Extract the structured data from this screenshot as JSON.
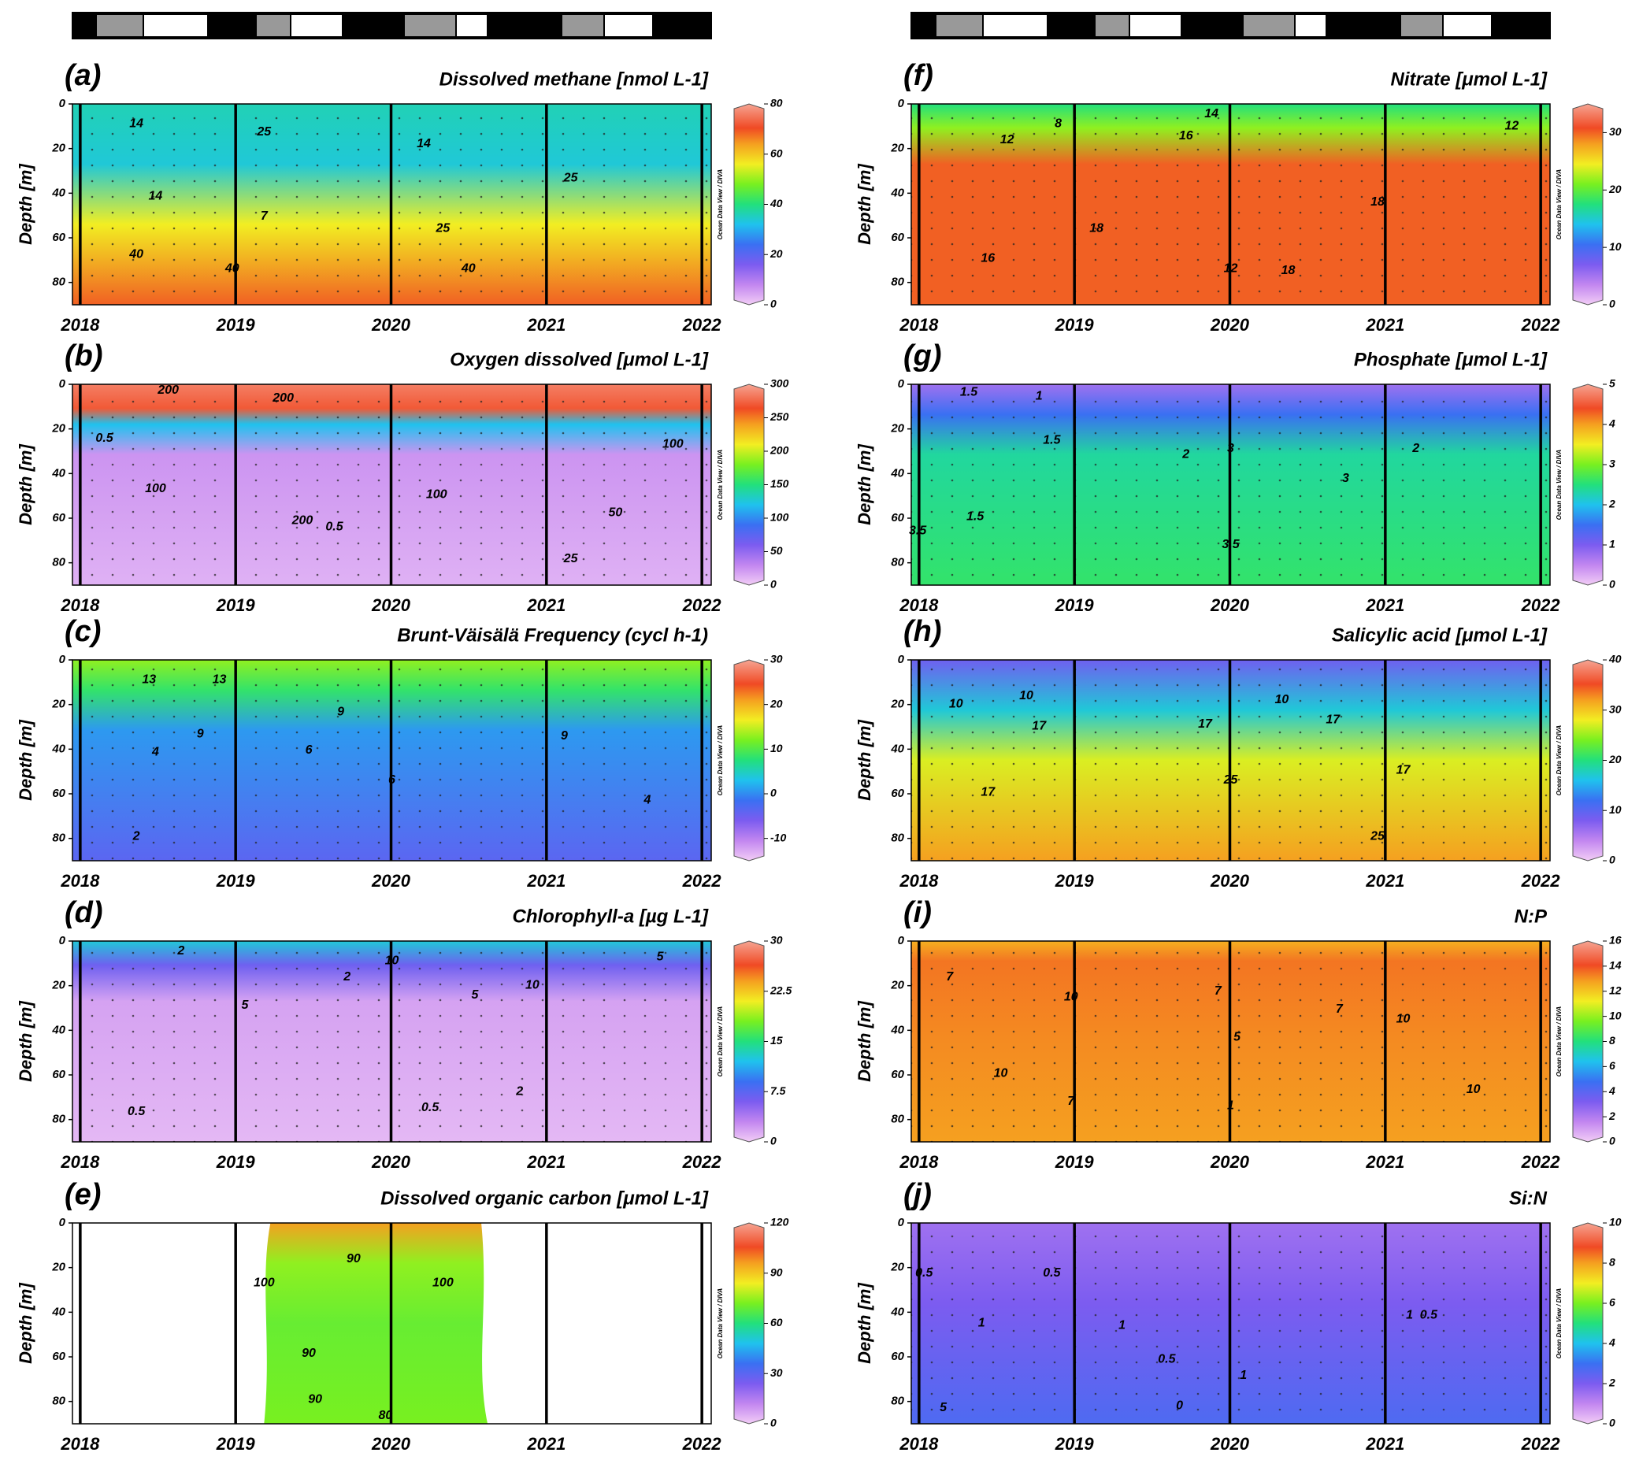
{
  "chart_data": [
    {
      "type": "contour",
      "panel_label": "(a)",
      "title": "Dissolved methane [nmol L-1]",
      "ylabel": "Depth [m]",
      "xlim": [
        2017.95,
        2022.06
      ],
      "xticks": [
        2018,
        2019,
        2020,
        2021,
        2022
      ],
      "ylim": [
        90,
        0
      ],
      "yticks": [
        0,
        20,
        40,
        60,
        80
      ],
      "colorbar": {
        "lim": [
          0,
          80
        ],
        "ticks": [
          0,
          20,
          40,
          60,
          80
        ]
      },
      "watermark": "Ocean Data View / DIVA",
      "contour_labels": [
        "14",
        "25",
        "14",
        "14",
        "7",
        "25",
        "40",
        "40",
        "40",
        "25"
      ]
    },
    {
      "type": "contour",
      "panel_label": "(b)",
      "title": "Oxygen dissolved [μmol L-1]",
      "ylabel": "Depth [m]",
      "xlim": [
        2017.95,
        2022.06
      ],
      "xticks": [
        2018,
        2019,
        2020,
        2021,
        2022
      ],
      "ylim": [
        90,
        0
      ],
      "yticks": [
        0,
        20,
        40,
        60,
        80
      ],
      "colorbar": {
        "lim": [
          0,
          300
        ],
        "ticks": [
          0,
          50,
          100,
          150,
          200,
          250,
          300
        ]
      },
      "watermark": "Ocean Data View / DIVA",
      "contour_labels": [
        "200",
        "200",
        "0.5",
        "100",
        "200",
        "0.5",
        "100",
        "25",
        "50",
        "100"
      ]
    },
    {
      "type": "contour",
      "panel_label": "(c)",
      "title": "Brunt-Väisälä Frequency (cycl h-1)",
      "ylabel": "Depth [m]",
      "xlim": [
        2017.95,
        2022.06
      ],
      "xticks": [
        2018,
        2019,
        2020,
        2021,
        2022
      ],
      "ylim": [
        90,
        0
      ],
      "yticks": [
        0,
        20,
        40,
        60,
        80
      ],
      "colorbar": {
        "lim": [
          -15,
          30
        ],
        "ticks": [
          -10,
          0,
          10,
          20,
          30
        ]
      },
      "watermark": "Ocean Data View / DIVA",
      "contour_labels": [
        "13",
        "13",
        "9",
        "9",
        "6",
        "4",
        "2",
        "6",
        "9",
        "4"
      ]
    },
    {
      "type": "contour",
      "panel_label": "(d)",
      "title": "Chlorophyll-a [µg L-1]",
      "ylabel": "Depth [m]",
      "xlim": [
        2017.95,
        2022.06
      ],
      "xticks": [
        2018,
        2019,
        2020,
        2021,
        2022
      ],
      "ylim": [
        90,
        0
      ],
      "yticks": [
        0,
        20,
        40,
        60,
        80
      ],
      "colorbar": {
        "lim": [
          0,
          30
        ],
        "ticks": [
          0,
          7.5,
          15,
          22.5,
          30
        ]
      },
      "watermark": "Ocean Data View / DIVA",
      "contour_labels": [
        "2",
        "5",
        "10",
        "5",
        "10",
        "2",
        "2",
        "0.5",
        "0.5",
        "5"
      ]
    },
    {
      "type": "contour",
      "panel_label": "(e)",
      "title": "Dissolved organic carbon [μmol L-1]",
      "ylabel": "Depth [m]",
      "xlim": [
        2017.95,
        2022.06
      ],
      "xticks": [
        2018,
        2019,
        2020,
        2021,
        2022
      ],
      "ylim": [
        90,
        0
      ],
      "yticks": [
        0,
        20,
        40,
        60,
        80
      ],
      "colorbar": {
        "lim": [
          0,
          120
        ],
        "ticks": [
          0,
          30,
          60,
          90,
          120
        ]
      },
      "watermark": "Ocean Data View / DIVA",
      "contour_labels": [
        "90",
        "100",
        "100",
        "90",
        "90",
        "80"
      ]
    },
    {
      "type": "contour",
      "panel_label": "(f)",
      "title": "Nitrate [μmol L-1]",
      "ylabel": "Depth [m]",
      "xlim": [
        2017.95,
        2022.06
      ],
      "xticks": [
        2018,
        2019,
        2020,
        2021,
        2022
      ],
      "ylim": [
        90,
        0
      ],
      "yticks": [
        0,
        20,
        40,
        60,
        80
      ],
      "colorbar": {
        "lim": [
          0,
          35
        ],
        "ticks": [
          0,
          10,
          20,
          30
        ]
      },
      "watermark": "Ocean Data View / DIVA",
      "contour_labels": [
        "8",
        "14",
        "12",
        "16",
        "18",
        "16",
        "18",
        "18",
        "12",
        "12"
      ]
    },
    {
      "type": "contour",
      "panel_label": "(g)",
      "title": "Phosphate [μmol L-1]",
      "ylabel": "Depth [m]",
      "xlim": [
        2017.95,
        2022.06
      ],
      "xticks": [
        2018,
        2019,
        2020,
        2021,
        2022
      ],
      "ylim": [
        90,
        0
      ],
      "yticks": [
        0,
        20,
        40,
        60,
        80
      ],
      "colorbar": {
        "lim": [
          0,
          5
        ],
        "ticks": [
          0,
          1,
          2,
          3,
          4,
          5
        ]
      },
      "watermark": "Ocean Data View / DIVA",
      "contour_labels": [
        "1.5",
        "1",
        "1.5",
        "2",
        "3",
        "3",
        "3.5",
        "1.5",
        "2",
        "3.5"
      ]
    },
    {
      "type": "contour",
      "panel_label": "(h)",
      "title": "Salicylic acid [μmol L-1]",
      "ylabel": "Depth [m]",
      "xlim": [
        2017.95,
        2022.06
      ],
      "xticks": [
        2018,
        2019,
        2020,
        2021,
        2022
      ],
      "ylim": [
        90,
        0
      ],
      "yticks": [
        0,
        20,
        40,
        60,
        80
      ],
      "colorbar": {
        "lim": [
          0,
          40
        ],
        "ticks": [
          0,
          10,
          20,
          30,
          40
        ]
      },
      "watermark": "Ocean Data View / DIVA",
      "contour_labels": [
        "10",
        "10",
        "17",
        "17",
        "17",
        "25",
        "25",
        "17",
        "17",
        "10"
      ]
    },
    {
      "type": "contour",
      "panel_label": "(i)",
      "title": "N:P",
      "ylabel": "Depth [m]",
      "xlim": [
        2017.95,
        2022.06
      ],
      "xticks": [
        2018,
        2019,
        2020,
        2021,
        2022
      ],
      "ylim": [
        90,
        0
      ],
      "yticks": [
        0,
        20,
        40,
        60,
        80
      ],
      "colorbar": {
        "lim": [
          0,
          16
        ],
        "ticks": [
          0,
          2,
          4,
          6,
          8,
          10,
          12,
          14,
          16
        ]
      },
      "watermark": "Ocean Data View / DIVA",
      "contour_labels": [
        "7",
        "10",
        "10",
        "7",
        "5",
        "7",
        "10",
        "10",
        "7",
        "1"
      ]
    },
    {
      "type": "contour",
      "panel_label": "(j)",
      "title": "Si:N",
      "ylabel": "Depth [m]",
      "xlim": [
        2017.95,
        2022.06
      ],
      "xticks": [
        2018,
        2019,
        2020,
        2021,
        2022
      ],
      "ylim": [
        90,
        0
      ],
      "yticks": [
        0,
        20,
        40,
        60,
        80
      ],
      "colorbar": {
        "lim": [
          0,
          10
        ],
        "ticks": [
          0,
          2,
          4,
          6,
          8,
          10
        ]
      },
      "watermark": "Ocean Data View / DIVA",
      "contour_labels": [
        "0.5",
        "0.5",
        "1",
        "1",
        "1",
        "0.5",
        "1",
        "0.5",
        "0",
        "5"
      ]
    }
  ]
}
